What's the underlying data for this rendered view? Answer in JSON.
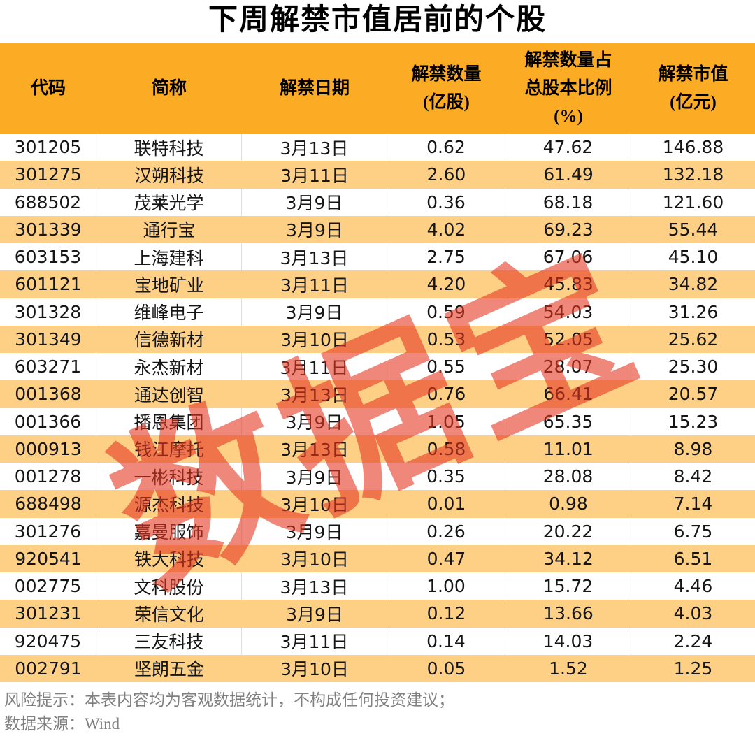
{
  "title": "下周解禁市值居前的个股",
  "watermark_text": "数据宝",
  "colors": {
    "header_bg": "#FBAC24",
    "row_bg": "#FFFFFF",
    "row_alt_bg": "#FDD086",
    "watermark": "rgba(230,55,35,0.6)",
    "body_text": "#151515",
    "footer_text": "#808080"
  },
  "chart_data": {
    "type": "table",
    "title": "下周解禁市值居前的个股",
    "columns": [
      "代码",
      "简称",
      "解禁日期",
      "解禁数量\n(亿股)",
      "解禁数量占\n总股本比例\n(%)",
      "解禁市值\n(亿元)"
    ],
    "rows": [
      [
        "301205",
        "联特科技",
        "3月13日",
        "0.62",
        "47.62",
        "146.88"
      ],
      [
        "301275",
        "汉朔科技",
        "3月11日",
        "2.60",
        "61.49",
        "132.18"
      ],
      [
        "688502",
        "茂莱光学",
        "3月9日",
        "0.36",
        "68.18",
        "121.60"
      ],
      [
        "301339",
        "通行宝",
        "3月9日",
        "4.02",
        "69.23",
        "55.44"
      ],
      [
        "603153",
        "上海建科",
        "3月13日",
        "2.75",
        "67.06",
        "45.10"
      ],
      [
        "601121",
        "宝地矿业",
        "3月11日",
        "4.20",
        "45.83",
        "34.82"
      ],
      [
        "301328",
        "维峰电子",
        "3月9日",
        "0.59",
        "54.03",
        "31.26"
      ],
      [
        "301349",
        "信德新材",
        "3月10日",
        "0.53",
        "52.05",
        "25.62"
      ],
      [
        "603271",
        "永杰新材",
        "3月11日",
        "0.55",
        "28.07",
        "25.30"
      ],
      [
        "001368",
        "通达创智",
        "3月13日",
        "0.76",
        "66.41",
        "20.57"
      ],
      [
        "001366",
        "播恩集团",
        "3月9日",
        "1.05",
        "65.35",
        "15.23"
      ],
      [
        "000913",
        "钱江摩托",
        "3月13日",
        "0.58",
        "11.01",
        "8.98"
      ],
      [
        "001278",
        "一彬科技",
        "3月9日",
        "0.35",
        "28.08",
        "8.42"
      ],
      [
        "688498",
        "源杰科技",
        "3月10日",
        "0.01",
        "0.98",
        "7.14"
      ],
      [
        "301276",
        "嘉曼服饰",
        "3月9日",
        "0.26",
        "20.22",
        "6.75"
      ],
      [
        "920541",
        "铁大科技",
        "3月10日",
        "0.47",
        "34.12",
        "6.51"
      ],
      [
        "002775",
        "文科股份",
        "3月13日",
        "1.00",
        "15.72",
        "4.46"
      ],
      [
        "301231",
        "荣信文化",
        "3月9日",
        "0.12",
        "13.66",
        "4.03"
      ],
      [
        "920475",
        "三友科技",
        "3月11日",
        "0.14",
        "14.03",
        "2.24"
      ],
      [
        "002791",
        "坚朗五金",
        "3月10日",
        "0.05",
        "1.52",
        "1.25"
      ]
    ]
  },
  "footer": {
    "risk_note": "风险提示：本表内容均为客观数据统计，不构成任何投资建议；",
    "data_source": "数据来源：Wind"
  }
}
